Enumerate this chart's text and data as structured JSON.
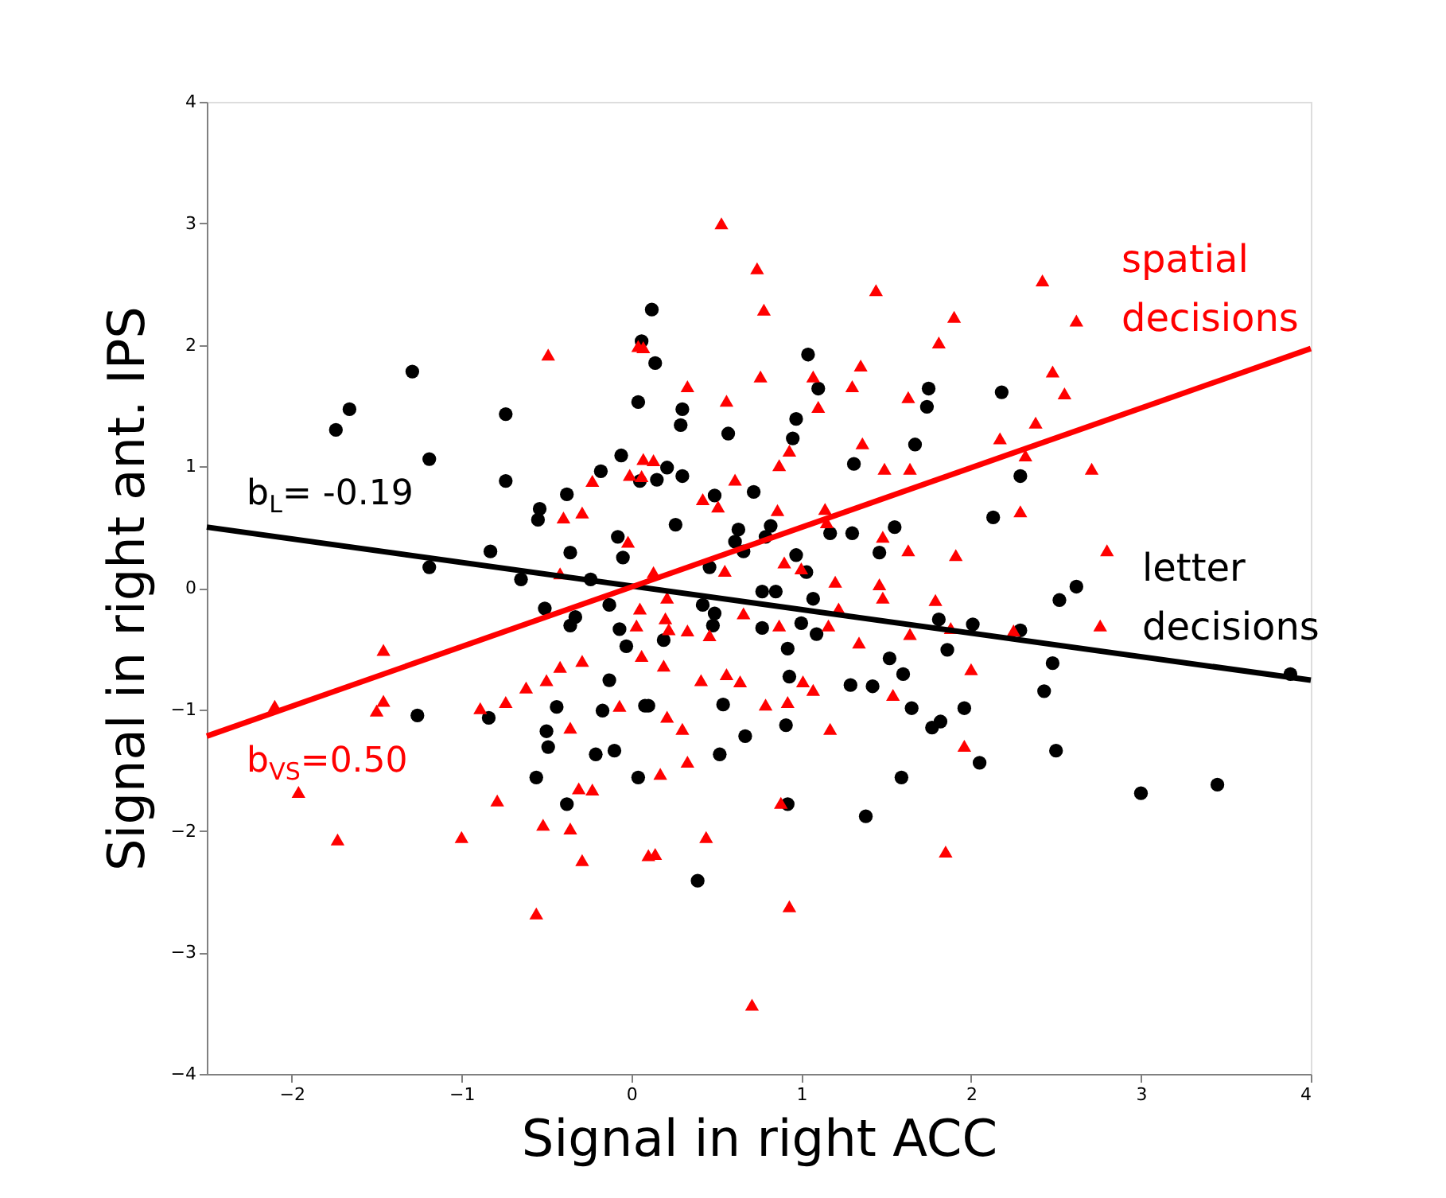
{
  "chart_data": {
    "type": "scatter",
    "xlabel": "Signal in right ACC",
    "ylabel": "Signal in right ant. IPS",
    "xlim": [
      -2.5,
      4
    ],
    "ylim": [
      -4,
      4
    ],
    "xticks": [
      -2,
      -1,
      0,
      1,
      2,
      3,
      4
    ],
    "yticks": [
      -4,
      -3,
      -2,
      -1,
      0,
      1,
      2,
      3,
      4
    ],
    "grid": false,
    "series": [
      {
        "name": "letter decisions",
        "marker": "circle",
        "color": "#000000",
        "x": [
          -1.74,
          -1.66,
          -1.29,
          -1.19,
          -0.74,
          -0.74,
          -1.19,
          -0.83,
          -0.65,
          -0.54,
          -0.55,
          -0.38,
          -0.36,
          -0.24,
          -0.18,
          -0.06,
          -0.08,
          -0.05,
          0.04,
          0.05,
          0.12,
          0.06,
          0.14,
          0.3,
          0.29,
          0.57,
          1.04,
          1.1,
          0.97,
          0.95,
          0.21,
          0.15,
          0.3,
          0.49,
          0.72,
          1.31,
          1.67,
          1.75,
          1.74,
          2.18,
          2.29,
          2.13,
          0.26,
          0.63,
          0.61,
          0.66,
          0.82,
          0.79,
          1.17,
          1.3,
          1.55,
          1.46,
          0.97,
          1.03,
          0.46,
          0.77,
          0.85,
          1.07,
          2.52,
          2.62,
          -1.26,
          -0.84,
          -0.51,
          -0.33,
          -0.36,
          -0.13,
          -0.07,
          -0.03,
          -0.44,
          -0.5,
          -0.49,
          -0.21,
          -0.1,
          -0.13,
          -0.17,
          -0.56,
          -0.38,
          0.04,
          0.08,
          0.42,
          0.49,
          0.48,
          1.0,
          1.09,
          0.77,
          0.92,
          0.93,
          0.19,
          0.1,
          0.54,
          0.67,
          0.52,
          0.91,
          0.92,
          1.29,
          1.42,
          1.52,
          1.6,
          1.65,
          1.77,
          1.82,
          1.96,
          2.05,
          1.59,
          1.38,
          1.81,
          1.86,
          2.01,
          2.29,
          2.48,
          2.43,
          2.5,
          0.39,
          3.0,
          3.45,
          3.88
        ],
        "values": [
          1.3,
          1.47,
          1.78,
          1.06,
          1.43,
          0.88,
          0.17,
          0.3,
          0.07,
          0.65,
          0.56,
          0.77,
          0.29,
          0.07,
          0.96,
          1.09,
          0.42,
          0.25,
          1.53,
          0.88,
          2.29,
          2.03,
          1.85,
          1.47,
          1.34,
          1.27,
          1.92,
          1.64,
          1.39,
          1.23,
          0.99,
          0.89,
          0.92,
          0.76,
          0.79,
          1.02,
          1.18,
          1.64,
          1.49,
          1.61,
          0.92,
          0.58,
          0.52,
          0.48,
          0.38,
          0.3,
          0.51,
          0.42,
          0.45,
          0.45,
          0.5,
          0.29,
          0.27,
          0.13,
          0.17,
          -0.03,
          -0.03,
          -0.09,
          -0.1,
          0.01,
          -1.05,
          -1.07,
          -0.17,
          -0.24,
          -0.31,
          -0.14,
          -0.34,
          -0.48,
          -0.98,
          -1.18,
          -1.31,
          -1.37,
          -1.34,
          -0.76,
          -1.01,
          -1.56,
          -1.78,
          -1.56,
          -0.97,
          -0.14,
          -0.21,
          -0.31,
          -0.29,
          -0.38,
          -0.33,
          -0.5,
          -0.73,
          -0.43,
          -0.97,
          -0.96,
          -1.22,
          -1.37,
          -1.13,
          -1.78,
          -0.8,
          -0.81,
          -0.58,
          -0.71,
          -0.99,
          -1.15,
          -1.1,
          -0.99,
          -1.44,
          -1.56,
          -1.88,
          -0.26,
          -0.51,
          -0.3,
          -0.35,
          -0.62,
          -0.85,
          -1.34,
          -2.41,
          -1.69,
          -1.62,
          -0.71
        ]
      },
      {
        "name": "spatial decisions",
        "marker": "triangle",
        "color": "#ff0000",
        "x": [
          -0.49,
          0.04,
          -0.4,
          -0.29,
          -0.23,
          -0.01,
          0.07,
          -0.02,
          -0.42,
          0.53,
          0.74,
          0.78,
          1.44,
          1.9,
          1.81,
          2.42,
          2.62,
          0.07,
          0.33,
          0.56,
          0.76,
          1.07,
          1.1,
          1.3,
          1.35,
          1.63,
          2.48,
          2.55,
          2.38,
          2.17,
          2.32,
          1.36,
          0.93,
          0.87,
          1.49,
          1.64,
          0.13,
          0.06,
          0.61,
          0.42,
          0.51,
          0.86,
          1.14,
          1.15,
          2.29,
          1.48,
          1.63,
          1.91,
          0.55,
          0.9,
          1.0,
          0.13,
          1.2,
          1.46,
          0.21,
          1.79,
          -2.1,
          -1.46,
          -1.46,
          -1.5,
          -1.96,
          -1.73,
          -0.89,
          -0.74,
          -0.62,
          -0.5,
          -0.42,
          -0.29,
          -0.36,
          -0.79,
          -1.0,
          -0.52,
          -0.36,
          -0.29,
          -0.31,
          -0.23,
          -0.56,
          -0.07,
          0.03,
          0.06,
          0.1,
          0.05,
          0.2,
          0.22,
          0.33,
          0.46,
          0.66,
          0.87,
          1.16,
          1.22,
          1.48,
          1.88,
          1.64,
          1.34,
          2.25,
          2.0,
          0.19,
          0.41,
          0.56,
          0.64,
          1.01,
          1.07,
          1.54,
          0.79,
          0.92,
          0.21,
          0.3,
          1.17,
          0.33,
          0.17,
          1.96,
          0.88,
          0.44,
          0.14,
          1.85,
          0.93,
          0.71,
          2.71,
          2.8,
          2.76
        ],
        "values": [
          1.92,
          1.99,
          0.58,
          0.62,
          0.88,
          0.93,
          1.06,
          0.38,
          0.12,
          3.0,
          2.63,
          2.29,
          2.45,
          2.23,
          2.02,
          2.53,
          2.2,
          1.98,
          1.66,
          1.54,
          1.74,
          1.74,
          1.49,
          1.66,
          1.83,
          1.57,
          1.78,
          1.6,
          1.36,
          1.23,
          1.09,
          1.19,
          1.13,
          1.01,
          0.98,
          0.98,
          1.05,
          0.92,
          0.89,
          0.73,
          0.67,
          0.64,
          0.65,
          0.54,
          0.63,
          0.42,
          0.31,
          0.27,
          0.14,
          0.21,
          0.16,
          0.13,
          0.05,
          0.03,
          -0.08,
          -0.1,
          -0.97,
          -0.51,
          -0.93,
          -1.01,
          -1.68,
          -2.07,
          -0.99,
          -0.94,
          -0.82,
          -0.76,
          -0.65,
          -0.6,
          -1.15,
          -1.75,
          -2.05,
          -1.95,
          -1.98,
          -2.24,
          -1.65,
          -1.66,
          -2.68,
          -0.97,
          -0.31,
          -0.56,
          -2.2,
          -0.17,
          -0.25,
          -0.34,
          -0.35,
          -0.39,
          -0.21,
          -0.31,
          -0.31,
          -0.17,
          -0.08,
          -0.33,
          -0.38,
          -0.45,
          -0.35,
          -0.67,
          -0.64,
          -0.76,
          -0.71,
          -0.77,
          -0.77,
          -0.84,
          -0.88,
          -0.96,
          -0.94,
          -1.06,
          -1.16,
          -1.16,
          -1.43,
          -1.53,
          -1.3,
          -1.77,
          -2.05,
          -2.19,
          -2.17,
          -2.62,
          -3.43,
          0.98,
          0.31,
          -0.31
        ]
      },
      {
        "type": "line",
        "line_style": "solid",
        "color": "#000000",
        "x": [
          -2.5,
          4
        ],
        "values": [
          0.5,
          -0.76
        ]
      },
      {
        "type": "line",
        "line_style": "solid",
        "color": "#ff0000",
        "x": [
          -2.5,
          4
        ],
        "values": [
          -1.22,
          1.97
        ]
      }
    ],
    "annotations": [
      "b$_{L}$= -0.19",
      "b$_{VS}$=0.50"
    ]
  }
}
